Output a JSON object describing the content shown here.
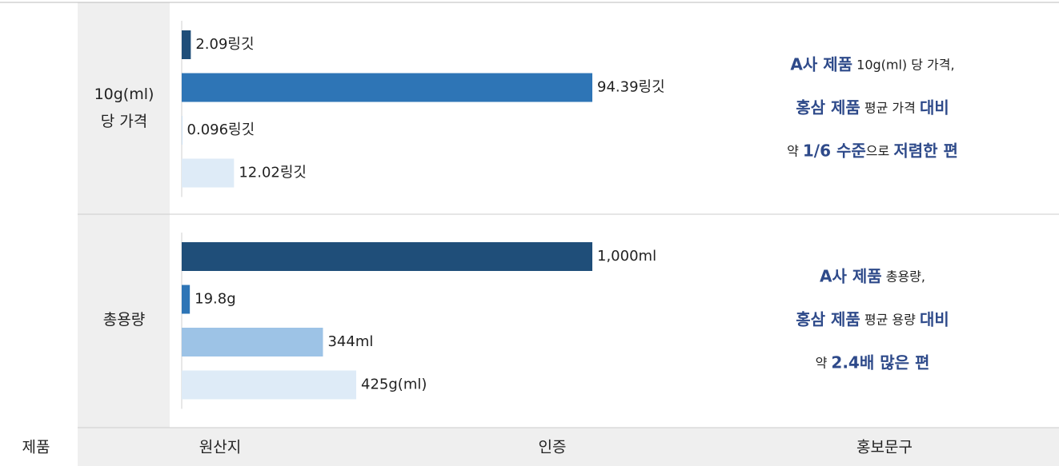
{
  "header": {
    "product": "제품",
    "origin": "원산지",
    "cert": "인증",
    "promo": "홍보문구"
  },
  "rows": [
    {
      "label": [
        "10g(ml)",
        "당 가격"
      ],
      "chart": {
        "type": "bar",
        "values": [
          2.09,
          94.39,
          0.096,
          12.02
        ],
        "value_labels": [
          "2.09링깃",
          "94.39링깃",
          "0.096링깃",
          "12.02링깃"
        ],
        "colors": [
          "#1f4e79",
          "#2e75b6",
          "#9dc3e6",
          "#deebf7"
        ]
      },
      "promo": [
        [
          {
            "text": "A사 제품",
            "bold": true
          },
          {
            "text": " 10g(ml) 당 가격,",
            "bold": false
          }
        ],
        [
          {
            "text": "홍삼 제품",
            "bold": true
          },
          {
            "text": " 평균 가격 ",
            "bold": false
          },
          {
            "text": "대비",
            "bold": true
          }
        ],
        [
          {
            "text": "약 ",
            "bold": false
          },
          {
            "text": "1/6 수준",
            "bold": true
          },
          {
            "text": "으로 ",
            "bold": false
          },
          {
            "text": "저렴한 편",
            "bold": true
          }
        ]
      ]
    },
    {
      "label": [
        "총용량"
      ],
      "chart": {
        "type": "bar",
        "values": [
          1000,
          19.8,
          344,
          425
        ],
        "value_labels": [
          "1,000ml",
          "19.8g",
          "344ml",
          "425g(ml)"
        ],
        "colors": [
          "#1f4e79",
          "#2e75b6",
          "#9dc3e6",
          "#deebf7"
        ]
      },
      "promo": [
        [
          {
            "text": "A사 제품",
            "bold": true
          },
          {
            "text": " 총용량,",
            "bold": false
          }
        ],
        [
          {
            "text": "홍삼 제품",
            "bold": true
          },
          {
            "text": " 평균 용량 ",
            "bold": false
          },
          {
            "text": "대비",
            "bold": true
          }
        ],
        [
          {
            "text": "약 ",
            "bold": false
          },
          {
            "text": "2.4배 많은 편",
            "bold": true
          }
        ]
      ]
    }
  ]
}
